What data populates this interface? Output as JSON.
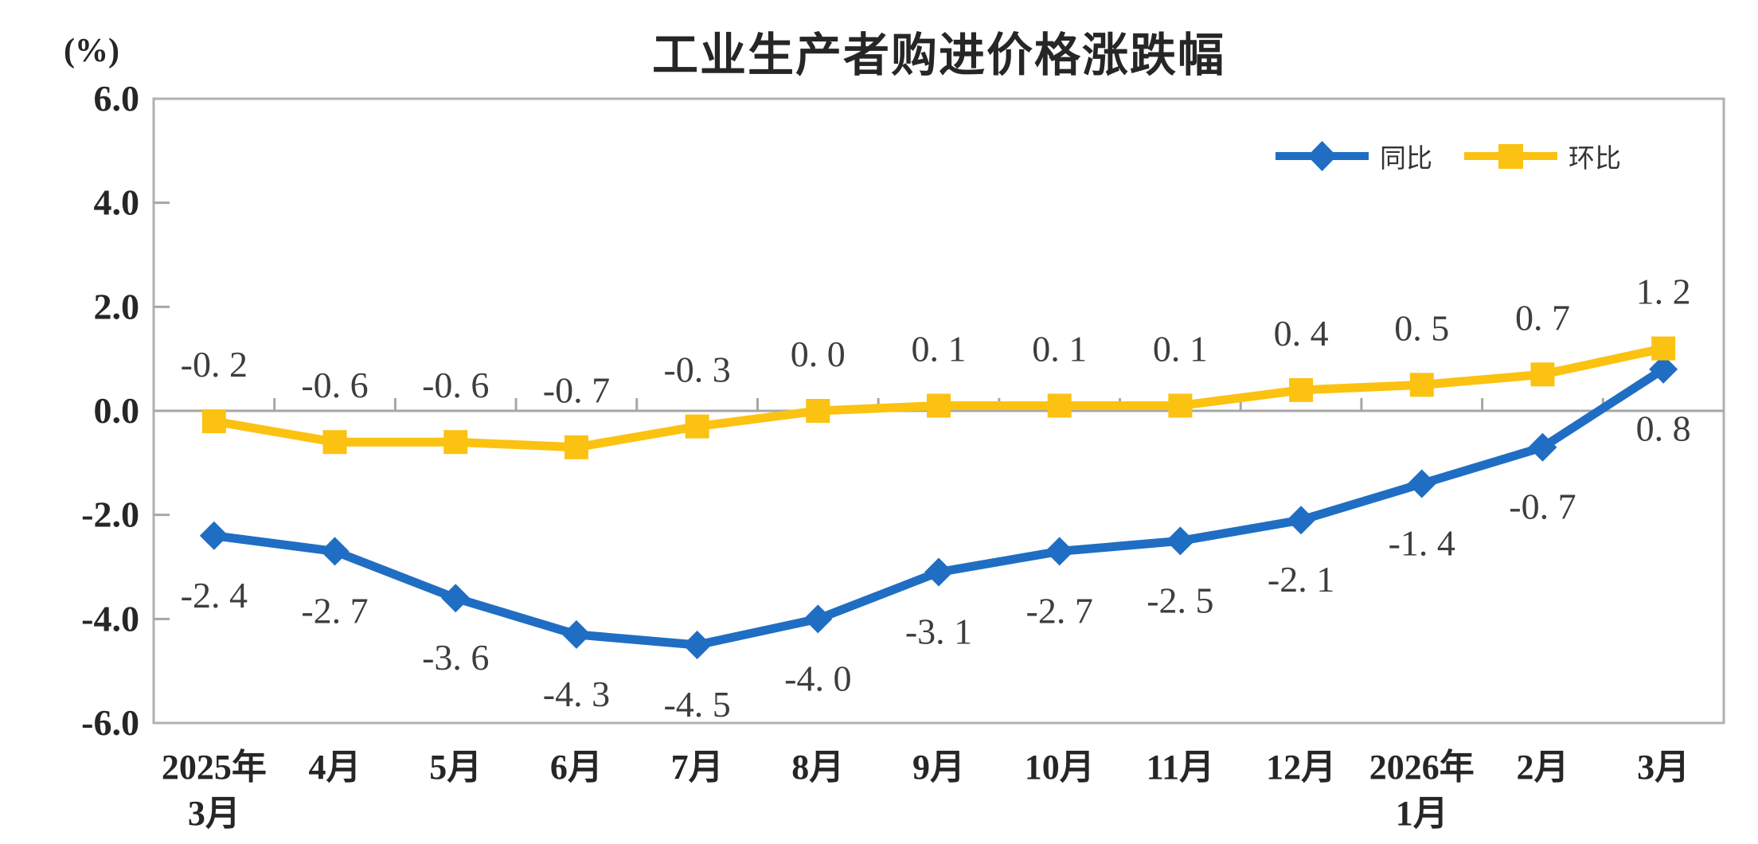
{
  "header": {
    "title": "工业生产者购进价格涨跌幅",
    "unit_label": "(%)"
  },
  "chart_data": {
    "type": "line",
    "title": "工业生产者购进价格涨跌幅",
    "unit": "(%)",
    "categories": [
      [
        "2025年",
        "3月"
      ],
      [
        "4月"
      ],
      [
        "5月"
      ],
      [
        "6月"
      ],
      [
        "7月"
      ],
      [
        "8月"
      ],
      [
        "9月"
      ],
      [
        "10月"
      ],
      [
        "11月"
      ],
      [
        "12月"
      ],
      [
        "2026年",
        "1月"
      ],
      [
        "2月"
      ],
      [
        "3月"
      ]
    ],
    "y_axis": {
      "min": -6.0,
      "max": 6.0,
      "tick_step": 2.0,
      "tick_values": [
        6,
        4,
        2,
        0,
        -2,
        -4,
        -6
      ],
      "tick_labels": [
        "6.0",
        "4.0",
        "2.0",
        "0.0",
        "-2.0",
        "-4.0",
        "-6.0"
      ]
    },
    "grid": "zero-line-only",
    "legend_position": "top-right-inside",
    "series": [
      {
        "name": "同比",
        "color": "#1F6EC3",
        "marker": "diamond",
        "label_side": "below",
        "values": [
          -2.4,
          -2.7,
          -3.6,
          -4.3,
          -4.5,
          -4.0,
          -3.1,
          -2.7,
          -2.5,
          -2.1,
          -1.4,
          -0.7,
          0.8
        ],
        "labels": [
          "-2. 4",
          "-2. 7",
          "-3. 6",
          "-4. 3",
          "-4. 5",
          "-4. 0",
          "-3. 1",
          "-2. 7",
          "-2. 5",
          "-2. 1",
          "-1. 4",
          "-0. 7",
          "0. 8"
        ]
      },
      {
        "name": "环比",
        "color": "#FBC211",
        "marker": "square",
        "label_side": "above",
        "values": [
          -0.2,
          -0.6,
          -0.6,
          -0.7,
          -0.3,
          0.0,
          0.1,
          0.1,
          0.1,
          0.4,
          0.5,
          0.7,
          1.2
        ],
        "labels": [
          "-0. 2",
          "-0. 6",
          "-0. 6",
          "-0. 7",
          "-0. 3",
          "0. 0",
          "0. 1",
          "0. 1",
          "0. 1",
          "0. 4",
          "0. 5",
          "0. 7",
          "1. 2"
        ]
      }
    ],
    "colors": {
      "axis_line": "#B0B0B0",
      "zero_line": "#A6A6A6",
      "tick": "#A6A6A6",
      "data_label_text": "#3D3D3D",
      "axis_text": "#262626",
      "title_text": "#262626"
    }
  }
}
